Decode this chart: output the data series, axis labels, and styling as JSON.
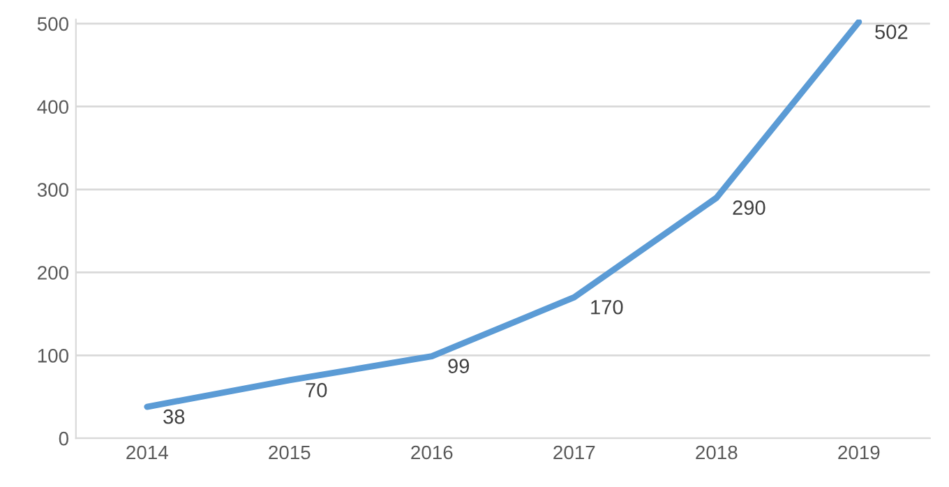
{
  "chart_data": {
    "type": "line",
    "categories": [
      "2014",
      "2015",
      "2016",
      "2017",
      "2018",
      "2019"
    ],
    "series": [
      {
        "color": "#5b9bd5",
        "values": [
          38,
          70,
          99,
          170,
          290,
          502
        ]
      }
    ],
    "ylim": [
      0,
      505
    ],
    "yticks": [
      0,
      100,
      200,
      300,
      400,
      500
    ],
    "grid": "y",
    "data_labels": true,
    "marker": "none",
    "line_style": "solid"
  }
}
